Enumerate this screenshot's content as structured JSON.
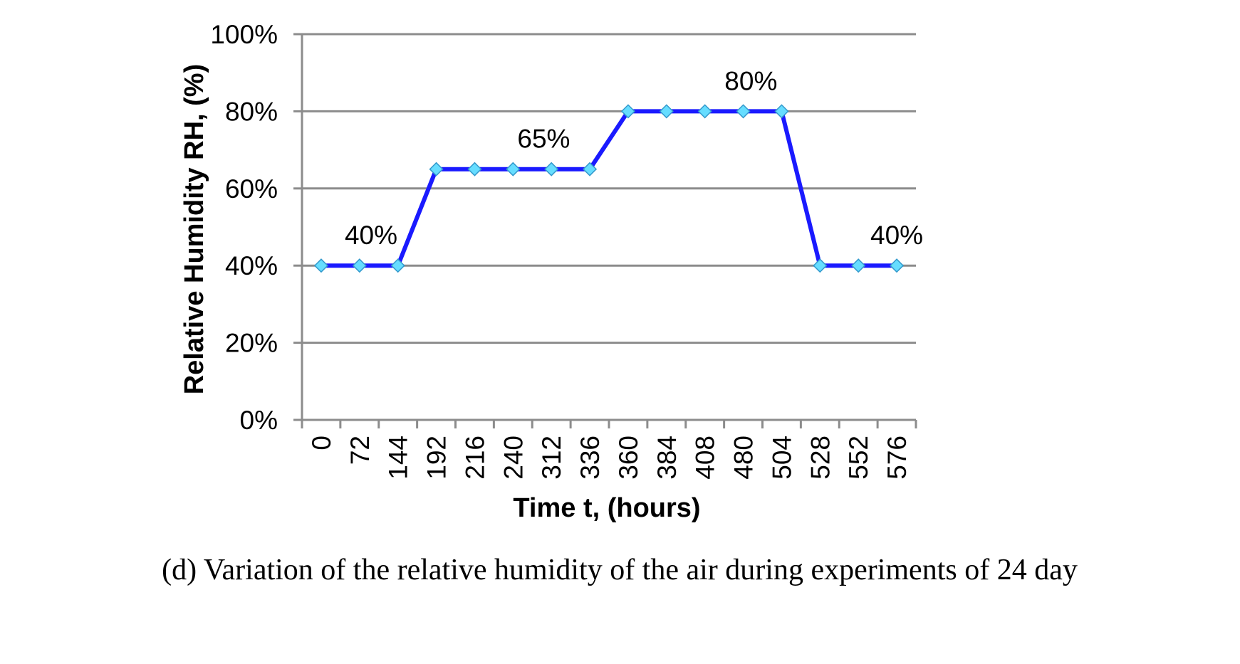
{
  "chart_data": {
    "type": "line",
    "categories": [
      "0",
      "72",
      "144",
      "192",
      "216",
      "240",
      "312",
      "336",
      "360",
      "384",
      "408",
      "480",
      "504",
      "528",
      "552",
      "576"
    ],
    "series": [
      {
        "name": "Relative Humidity RH",
        "values": [
          40,
          40,
          40,
          65,
          65,
          65,
          65,
          65,
          80,
          80,
          80,
          80,
          80,
          40,
          40,
          40
        ]
      }
    ],
    "ylim": [
      0,
      100
    ],
    "yticks": [
      0,
      20,
      40,
      60,
      80,
      100
    ],
    "ytick_labels": [
      "0%",
      "20%",
      "40%",
      "60%",
      "80%",
      "100%"
    ],
    "xlabel": "Time t, (hours)",
    "ylabel": "Relative Humidity RH, (%)",
    "grid": true,
    "annotations": [
      {
        "text": "40%",
        "category_index": 1.3,
        "value": 40
      },
      {
        "text": "65%",
        "category_index": 5.8,
        "value": 65
      },
      {
        "text": "80%",
        "category_index": 11.2,
        "value": 80
      },
      {
        "text": "40%",
        "category_index": 15.0,
        "value": 40
      }
    ],
    "line_color": "#1a1aff",
    "marker_color": "#66ddff",
    "grid_color": "#8c8c8c"
  },
  "caption": "(d) Variation of the relative humidity of the air during experiments of 24 day"
}
